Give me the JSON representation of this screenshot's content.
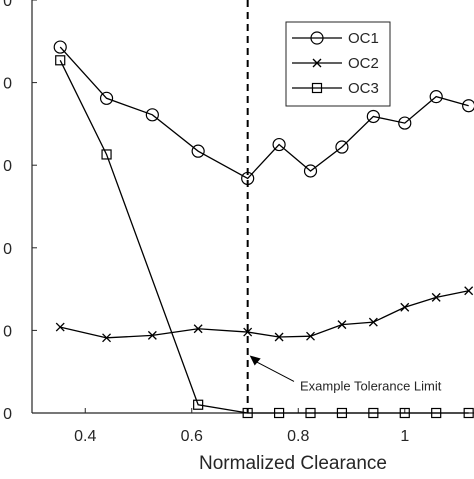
{
  "chart_data": {
    "type": "line",
    "title": "",
    "xlabel": "Normalized Clearance",
    "ylabel": "",
    "xlim": [
      0.3,
      1.13
    ],
    "ylim": [
      0,
      0.5
    ],
    "xticks": [
      {
        "value": 0.4,
        "label": "0.4"
      },
      {
        "value": 0.6,
        "label": "0.6"
      },
      {
        "value": 0.8,
        "label": "0.8"
      },
      {
        "value": 1.0,
        "label": "1"
      }
    ],
    "yticks": [
      {
        "value": 0.0,
        "label": "0"
      },
      {
        "value": 0.1,
        "label": "0"
      },
      {
        "value": 0.2,
        "label": "0"
      },
      {
        "value": 0.3,
        "label": "0"
      },
      {
        "value": 0.4,
        "label": "0"
      },
      {
        "value": 0.5,
        "label": "0"
      }
    ],
    "grid": false,
    "legend": {
      "position": "top-right"
    },
    "series": [
      {
        "name": "OC1",
        "marker": "circle",
        "color": "#000000",
        "x": [
          0.353,
          0.44,
          0.526,
          0.612,
          0.705,
          0.764,
          0.823,
          0.882,
          0.941,
          1.0,
          1.059,
          1.12
        ],
        "y": [
          0.443,
          0.381,
          0.361,
          0.317,
          0.284,
          0.325,
          0.293,
          0.322,
          0.359,
          0.351,
          0.383,
          0.372
        ]
      },
      {
        "name": "OC2",
        "marker": "x",
        "color": "#000000",
        "x": [
          0.353,
          0.44,
          0.526,
          0.612,
          0.705,
          0.764,
          0.823,
          0.882,
          0.941,
          1.0,
          1.059,
          1.12
        ],
        "y": [
          0.104,
          0.091,
          0.094,
          0.102,
          0.098,
          0.092,
          0.093,
          0.107,
          0.11,
          0.128,
          0.14,
          0.148
        ]
      },
      {
        "name": "OC3",
        "marker": "square",
        "color": "#000000",
        "x": [
          0.353,
          0.44,
          0.612,
          0.705,
          0.764,
          0.823,
          0.882,
          0.941,
          1.0,
          1.059,
          1.12
        ],
        "y": [
          0.427,
          0.313,
          0.01,
          0.0,
          0.0,
          0.0,
          0.0,
          0.0,
          0.0,
          0.0,
          0.0
        ]
      }
    ],
    "reference_line": {
      "x": 0.705,
      "style": "dashed"
    },
    "annotation": {
      "text": "Example Tolerance Limit",
      "x": 0.705,
      "y": 0.06
    }
  }
}
